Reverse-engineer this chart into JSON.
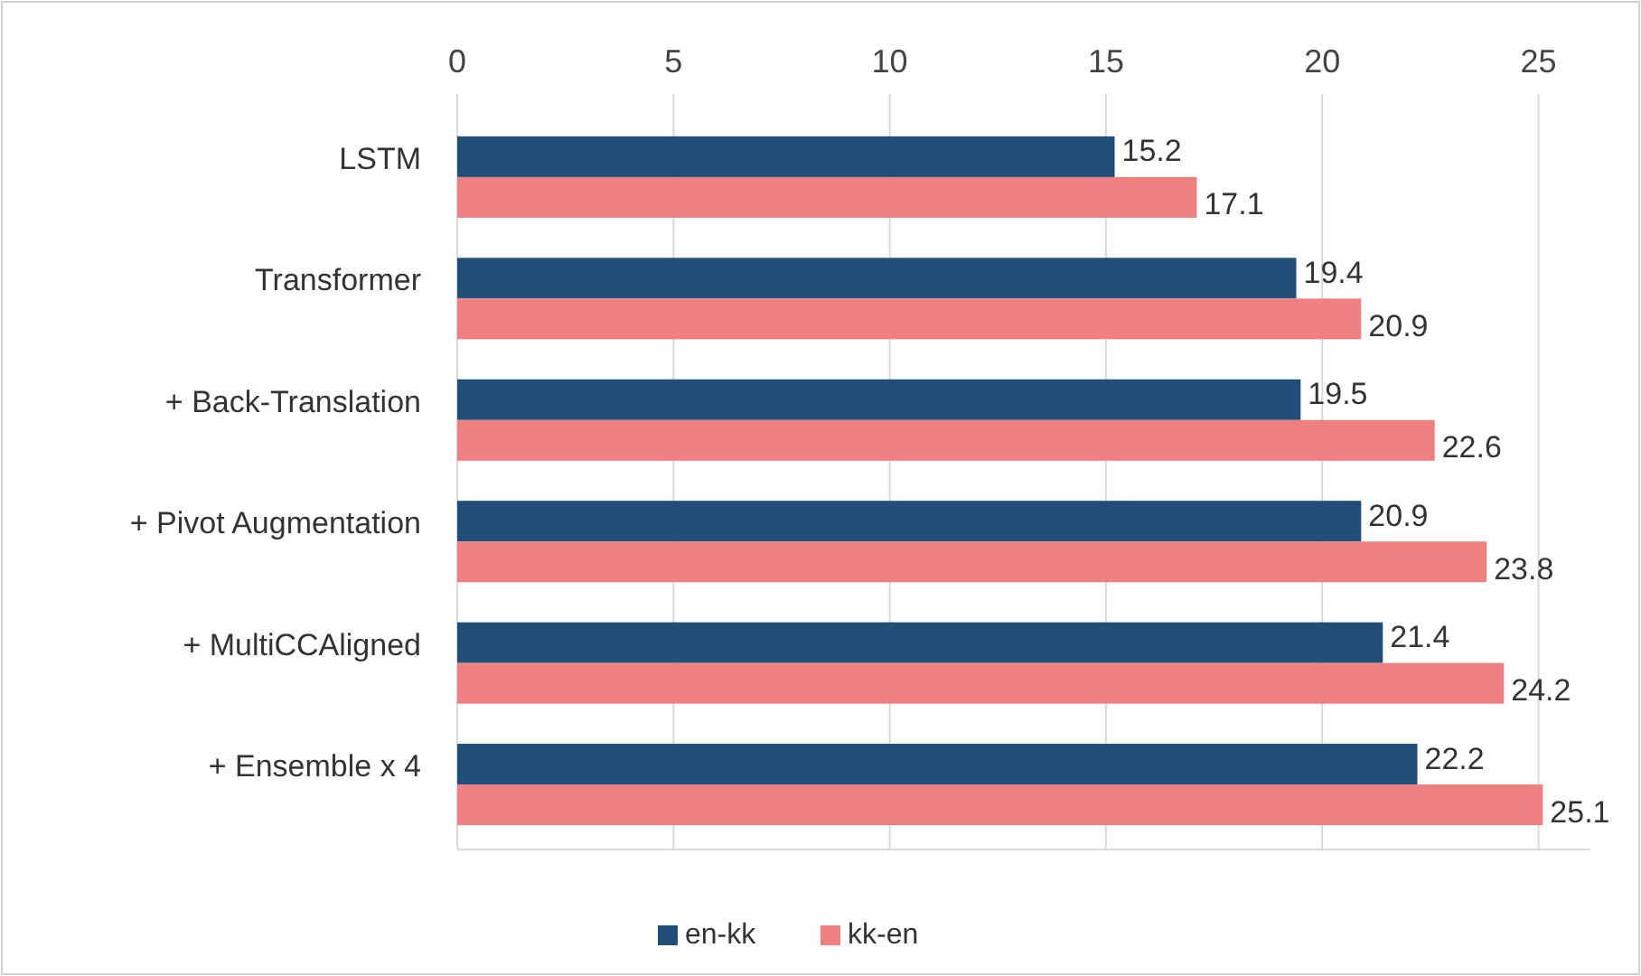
{
  "chart_data": {
    "type": "bar",
    "orientation": "horizontal",
    "categories": [
      "LSTM",
      "Transformer",
      "+ Back-Translation",
      "+ Pivot Augmentation",
      "+ MultiCCAligned",
      "+ Ensemble x 4"
    ],
    "series": [
      {
        "name": "en-kk",
        "color": "#1f4e79",
        "values": [
          15.2,
          19.4,
          19.5,
          20.9,
          21.4,
          22.2
        ]
      },
      {
        "name": "kk-en",
        "color": "#f08080",
        "values": [
          17.1,
          20.9,
          22.6,
          23.8,
          24.2,
          25.1
        ]
      }
    ],
    "xlim": [
      0,
      26.2
    ],
    "xticks": [
      0,
      5,
      10,
      15,
      20,
      25
    ],
    "grid": "x",
    "legend": "bottom",
    "data_labels": true
  }
}
